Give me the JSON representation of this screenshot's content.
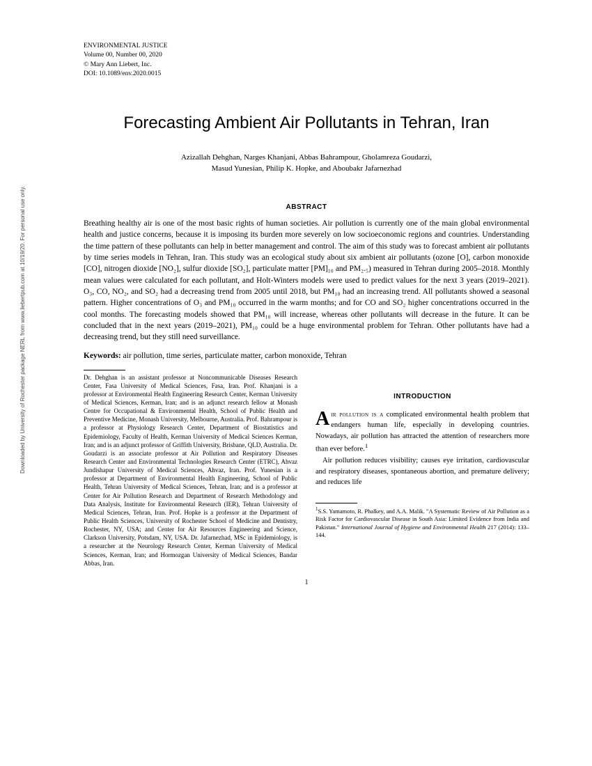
{
  "journal": {
    "name": "ENVIRONMENTAL JUSTICE",
    "volume_line": "Volume 00, Number 00, 2020",
    "copyright": "© Mary Ann Liebert, Inc.",
    "doi": "DOI: 10.1089/env.2020.0015"
  },
  "title": "Forecasting Ambient Air Pollutants in Tehran, Iran",
  "authors_line1": "Azizallah Dehghan, Narges Khanjani, Abbas Bahrampour, Gholamreza Goudarzi,",
  "authors_line2": "Masud Yunesian, Philip K. Hopke, and Aboubakr Jafarnezhad",
  "abstract_heading": "ABSTRACT",
  "abstract_body": "Breathing healthy air is one of the most basic rights of human societies. Air pollution is currently one of the main global environmental health and justice concerns, because it is imposing its burden more severely on low socioeconomic regions and countries. Understanding the time pattern of these pollutants can help in better management and control. The aim of this study was to forecast ambient air pollutants by time series models in Tehran, Iran. This study was an ecological study about six ambient air pollutants (ozone [O], carbon monoxide [CO], nitrogen dioxide [NO₂], sulfur dioxide [SO₂], particulate matter [PM]₁₀ and PM₂.₅) measured in Tehran during 2005–2018. Monthly mean values were calculated for each pollutant, and Holt-Winters models were used to predict values for the next 3 years (2019–2021). O₃, CO, NO₂, and SO₂ had a decreasing trend from 2005 until 2018, but PM₁₀ had an increasing trend. All pollutants showed a seasonal pattern. Higher concentrations of O₃ and PM₁₀ occurred in the warm months; and for CO and SO₂ higher concentrations occurred in the cool months. The forecasting models showed that PM₁₀ will increase, whereas other pollutants will decrease in the future. It can be concluded that in the next years (2019–2021), PM₁₀ could be a huge environmental problem for Tehran. Other pollutants have had a decreasing trend, but they still need surveillance.",
  "keywords_label": "Keywords:",
  "keywords_text": " air pollution, time series, particulate matter, carbon monoxide, Tehran",
  "affiliations": "Dr. Dehghan is an assistant professor at Noncommunicable Diseases Research Center, Fasa University of Medical Sciences, Fasa, Iran. Prof. Khanjani is a professor at Environmental Health Engineering Research Center, Kerman University of Medical Sciences, Kerman, Iran; and is an adjunct research fellow at Monash Centre for Occupational & Environmental Health, School of Public Health and Preventive Medicine, Monash University, Melbourne, Australia. Prof. Bahrampour is a professor at Physiology Research Center, Department of Biostatistics and Epidemiology, Faculty of Health, Kerman University of Medical Sciences Kerman, Iran; and is an adjunct professor of Griffith University, Brisbane, QLD, Australia. Dr. Goudarzi is an associate professor at Air Pollution and Respiratory Diseases Research Center and Environmental Technologies Research Center (ETRC), Ahvaz Jundishapur University of Medical Sciences, Ahvaz, Iran. Prof. Yunesian is a professor at Department of Environmental Health Engineering, School of Public Health, Tehran University of Medical Sciences, Tehran, Iran; and is a professor at Center for Air Pollution Research and Department of Research Methodology and Data Analysis, Institute for Environmental Research (IER), Tehran University of Medical Sciences, Tehran, Iran. Prof. Hopke is a professor at the Department of Public Health Sciences, University of Rochester School of Medicine and Dentistry, Rochester, NY, USA; and Center for Air Resources Engineering and Science, Clarkson University, Potsdam, NY, USA. Dr. Jafarnezhad, MSc in Epidemiology, is a researcher at the Neurology Research Center, Kerman University of Medical Sciences, Kerman, Iran; and Hormozgan University of Medical Sciences, Bandar Abbas, Iran.",
  "intro_heading": "INTRODUCTION",
  "intro_p1_dropcap": "A",
  "intro_p1_smallcaps": "ir pollution is a",
  "intro_p1_rest": " complicated environmental health problem that endangers human life, especially in developing countries. Nowadays, air pollution has attracted the attention of researchers more than ever before.",
  "intro_p1_ref": "1",
  "intro_p2": "Air pollution reduces visibility; causes eye irritation, cardiovascular and respiratory diseases, spontaneous abortion, and premature delivery; and reduces life",
  "footnote_sup": "1",
  "footnote_authors": "S.S. Yamamoto, R. Phalkey, and A.A. Malik. ",
  "footnote_title": "\"A Systematic Review of Air Pollution as a Risk Factor for Cardiovascular Disease in South Asia: Limited Evidence from India and Pakistan.\"",
  "footnote_journal": " International Journal of Hygiene and Environmental Health",
  "footnote_cite": " 217 (2014): 133–144.",
  "sidebar": "Downloaded by University of Rochester package NERL from www.liebertpub.com at 10/19/20. For personal use only.",
  "page_number": "1"
}
